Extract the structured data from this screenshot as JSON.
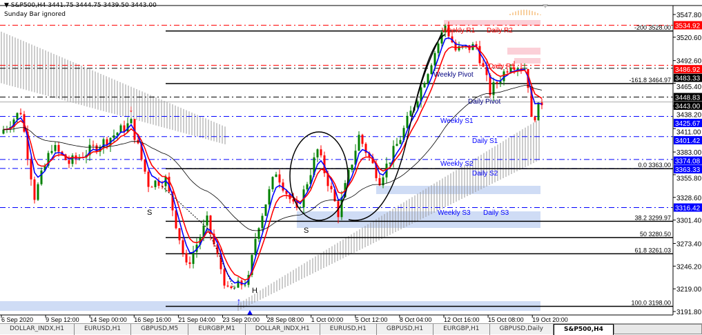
{
  "header": {
    "symbol_line": "S&P500,H4  3441.75 3444.75 3439.50 3443.00",
    "note": "Sunday Bar ignored"
  },
  "price_axis": {
    "ticks": [
      "3547.80",
      "3520.60",
      "3492.60",
      "3465.40",
      "3438.20",
      "3411.00",
      "3383.00",
      "3355.80",
      "3328.60",
      "3301.40",
      "3273.40",
      "3246.20",
      "3219.00",
      "3191.80"
    ]
  },
  "price_tags": [
    {
      "value": "3534.92",
      "color": "#ff0000"
    },
    {
      "value": "3486.92",
      "color": "#ff0000"
    },
    {
      "value": "3483.33",
      "color": "#000000"
    },
    {
      "value": "3448.83",
      "color": "#000000"
    },
    {
      "value": "3443.00",
      "color": "#000000"
    },
    {
      "value": "3425.67",
      "color": "#0000ff"
    },
    {
      "value": "3401.42",
      "color": "#0000ff"
    },
    {
      "value": "3374.08",
      "color": "#0000ff"
    },
    {
      "value": "3363.33",
      "color": "#0000ff"
    },
    {
      "value": "3316.42",
      "color": "#0000ff"
    }
  ],
  "fib_levels": [
    {
      "label": "-200  3528.00",
      "price": 3528.0
    },
    {
      "label": "-161.8 3464.97",
      "price": 3464.97
    },
    {
      "label": "0.0  3363.00",
      "price": 3363.0
    },
    {
      "label": "38.2  3299.97",
      "price": 3299.97
    },
    {
      "label": "50  3280.50",
      "price": 3280.5
    },
    {
      "label": "61.8  3261.03",
      "price": 3261.03
    },
    {
      "label": "100.0 3198.00",
      "price": 3198.0
    }
  ],
  "pivot_labels": [
    {
      "text": "Weekly R1",
      "color": "#ff0000"
    },
    {
      "text": "Daily R2",
      "color": "#ff0000"
    },
    {
      "text": "Weekly Pivot",
      "color": "#000080"
    },
    {
      "text": "Daily R1",
      "color": "#ff0000"
    },
    {
      "text": "Daily Pivot",
      "color": "#000080"
    },
    {
      "text": "Weekly S1",
      "color": "#0000ff"
    },
    {
      "text": "Daily S1",
      "color": "#0000ff"
    },
    {
      "text": "Weekly S2",
      "color": "#0000ff"
    },
    {
      "text": "Daily S2",
      "color": "#0000ff"
    },
    {
      "text": "Weekly S3",
      "color": "#0000ff"
    },
    {
      "text": "Daily S3",
      "color": "#0000ff"
    }
  ],
  "pattern_labels": [
    "S",
    "S",
    "H"
  ],
  "time_axis": [
    "6 Sep 2020",
    "9 Sep 12:00",
    "14 Sep 00:00",
    "16 Sep 16:00",
    "21 Sep 04:00",
    "23 Sep 20:00",
    "28 Sep 08:00",
    "1 Oct 00:00",
    "5 Oct 12:00",
    "8 Oct 04:00",
    "12 Oct 16:00",
    "15 Oct 08:00",
    "19 Oct 20:00"
  ],
  "tabs": [
    {
      "label": "DOLLAR_INDX,H1"
    },
    {
      "label": "EURUSD,H1"
    },
    {
      "label": "GBPUSD,M5"
    },
    {
      "label": "EURGBP,M1"
    },
    {
      "label": "DOLLAR_INDX,H1"
    },
    {
      "label": "EURUSD,H1"
    },
    {
      "label": "GBPUSD,H1"
    },
    {
      "label": "EURGBP,H1"
    },
    {
      "label": "GBPUSD,Daily"
    },
    {
      "label": "S&P500,H4",
      "active": true
    }
  ],
  "colors": {
    "bull": "#008000",
    "bear": "#ff0000",
    "ma_fast": "#0000ff",
    "ma_slow": "#ff0000"
  }
}
